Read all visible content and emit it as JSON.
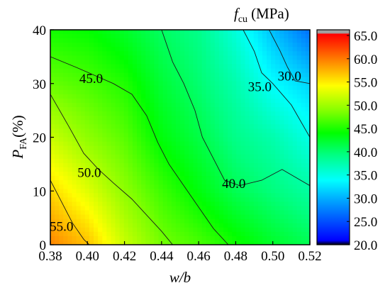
{
  "chart_data": {
    "type": "heatmap",
    "subtype": "filled-contour",
    "colorbar_title": {
      "symbol": "f",
      "subscript": "cu",
      "unit": "(MPa)"
    },
    "xlabel": "w/b",
    "ylabel": {
      "symbol": "P",
      "subscript": "FA",
      "unit": "(%)"
    },
    "xlim": [
      0.38,
      0.52
    ],
    "ylim": [
      0,
      40
    ],
    "x_ticks": [
      "0.38",
      "0.40",
      "0.42",
      "0.44",
      "0.46",
      "0.48",
      "0.50",
      "0.52"
    ],
    "y_ticks": [
      "0",
      "10",
      "20",
      "30",
      "40"
    ],
    "colorbar": {
      "range": [
        20.0,
        65.0
      ],
      "ticks": [
        "20.0",
        "25.0",
        "30.0",
        "35.0",
        "40.0",
        "45.0",
        "50.0",
        "55.0",
        "60.0",
        "65.0"
      ],
      "colormap": [
        "#000000",
        "#0000ff",
        "#00a0ff",
        "#00ffff",
        "#00ff80",
        "#00ff00",
        "#80ff00",
        "#ffff00",
        "#ff8000",
        "#ff0000",
        "#a0a0a0"
      ]
    },
    "grid": false,
    "contours": [
      {
        "level": 55.0,
        "label": "55.0",
        "points": [
          [
            0.38,
            12
          ],
          [
            0.386,
            8
          ],
          [
            0.392,
            4
          ],
          [
            0.398,
            1
          ],
          [
            0.401,
            0
          ]
        ]
      },
      {
        "level": 50.0,
        "label": "50.0",
        "points": [
          [
            0.38,
            28
          ],
          [
            0.39,
            22
          ],
          [
            0.398,
            17
          ],
          [
            0.406,
            14
          ],
          [
            0.414,
            11.5
          ],
          [
            0.424,
            8.5
          ],
          [
            0.432,
            5.5
          ],
          [
            0.44,
            2.5
          ],
          [
            0.446,
            0
          ]
        ]
      },
      {
        "level": 45.0,
        "label": "45.0",
        "points": [
          [
            0.38,
            35
          ],
          [
            0.394,
            33
          ],
          [
            0.404,
            31.5
          ],
          [
            0.414,
            30
          ],
          [
            0.424,
            28
          ],
          [
            0.432,
            24
          ],
          [
            0.438,
            19
          ],
          [
            0.444,
            15
          ],
          [
            0.452,
            11
          ],
          [
            0.46,
            7
          ],
          [
            0.468,
            3
          ],
          [
            0.476,
            0
          ]
        ]
      },
      {
        "level": 40.0,
        "label": "40.0",
        "points": [
          [
            0.44,
            40
          ],
          [
            0.446,
            34
          ],
          [
            0.452,
            30
          ],
          [
            0.458,
            25
          ],
          [
            0.462,
            20
          ],
          [
            0.468,
            16
          ],
          [
            0.474,
            12
          ],
          [
            0.482,
            11
          ],
          [
            0.494,
            12
          ],
          [
            0.505,
            14
          ],
          [
            0.52,
            11
          ]
        ]
      },
      {
        "level": 35.0,
        "label": "35.0",
        "points": [
          [
            0.484,
            40
          ],
          [
            0.49,
            36
          ],
          [
            0.494,
            32
          ],
          [
            0.5,
            30
          ],
          [
            0.51,
            26
          ],
          [
            0.52,
            20
          ]
        ]
      },
      {
        "level": 30.0,
        "label": "30.0",
        "points": [
          [
            0.498,
            40
          ],
          [
            0.504,
            36
          ],
          [
            0.508,
            33
          ],
          [
            0.512,
            30.5
          ],
          [
            0.52,
            30
          ]
        ]
      }
    ],
    "surface_samples": {
      "x": [
        0.38,
        0.4,
        0.42,
        0.44,
        0.46,
        0.48,
        0.5,
        0.52
      ],
      "y": [
        0,
        10,
        20,
        30,
        40
      ],
      "z": [
        [
          58.5,
          56.0,
          51.0,
          47.5,
          46.0,
          44.0,
          42.0,
          40.5
        ],
        [
          55.0,
          52.0,
          48.5,
          45.5,
          43.0,
          40.5,
          39.0,
          37.5
        ],
        [
          51.0,
          48.5,
          46.5,
          43.0,
          41.0,
          38.5,
          37.0,
          34.5
        ],
        [
          47.0,
          46.0,
          44.5,
          41.5,
          39.5,
          37.0,
          33.5,
          31.5
        ],
        [
          44.0,
          43.5,
          42.0,
          40.0,
          38.5,
          35.0,
          30.5,
          26.5
        ]
      ]
    }
  }
}
